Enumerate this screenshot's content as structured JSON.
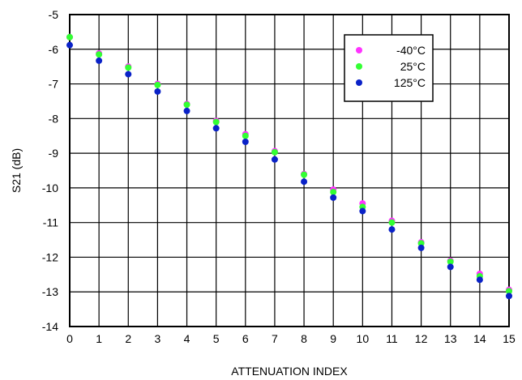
{
  "chart_data": {
    "type": "scatter",
    "title": "",
    "xlabel": "ATTENUATION INDEX",
    "ylabel": "S21 (dB)",
    "xlim": [
      0,
      15
    ],
    "ylim": [
      -14,
      -5
    ],
    "x_ticks": [
      "0",
      "1",
      "2",
      "3",
      "4",
      "5",
      "6",
      "7",
      "8",
      "9",
      "10",
      "11",
      "12",
      "13",
      "14",
      "15"
    ],
    "y_ticks": [
      "-5",
      "-6",
      "-7",
      "-8",
      "-9",
      "-10",
      "-11",
      "-12",
      "-13",
      "-14"
    ],
    "grid": true,
    "legend_position": "top-right",
    "x": [
      0,
      1,
      2,
      3,
      4,
      5,
      6,
      7,
      8,
      9,
      10,
      11,
      12,
      13,
      14,
      15
    ],
    "series": [
      {
        "name": "-40°C",
        "color": "#ff33ff",
        "values": [
          -5.65,
          -6.12,
          -6.5,
          -7.0,
          -7.58,
          -8.07,
          -8.45,
          -8.94,
          -9.6,
          -10.05,
          -10.45,
          -10.95,
          -11.57,
          -12.1,
          -12.48,
          -12.94
        ]
      },
      {
        "name": "25°C",
        "color": "#33ff33",
        "values": [
          -5.65,
          -6.15,
          -6.53,
          -7.03,
          -7.6,
          -8.1,
          -8.5,
          -8.97,
          -9.62,
          -10.12,
          -10.55,
          -11.0,
          -11.6,
          -12.13,
          -12.55,
          -12.98
        ]
      },
      {
        "name": "125°C",
        "color": "#0a22c8",
        "values": [
          -5.88,
          -6.33,
          -6.72,
          -7.22,
          -7.78,
          -8.28,
          -8.67,
          -9.18,
          -9.82,
          -10.28,
          -10.67,
          -11.2,
          -11.73,
          -12.28,
          -12.65,
          -13.12
        ]
      }
    ]
  }
}
